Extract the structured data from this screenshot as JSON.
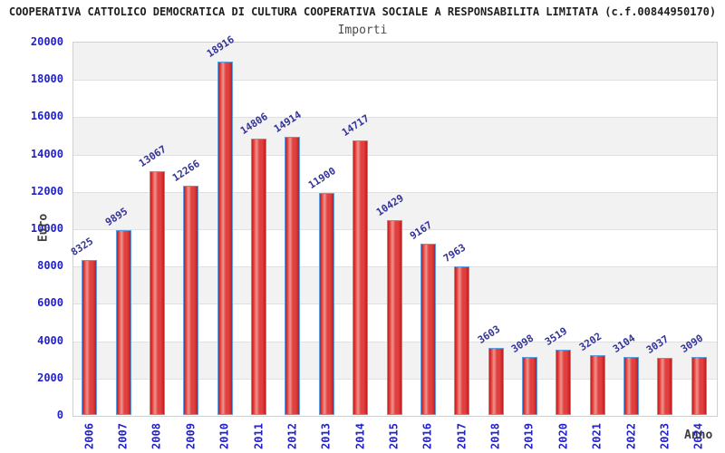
{
  "title": "COOPERATIVA CATTOLICO DEMOCRATICA DI CULTURA COOPERATIVA SOCIALE A RESPONSABILITA LIMITATA (c.f.00844950170)",
  "subtitle": "Importi",
  "chart_data": {
    "type": "bar",
    "title": "Importi",
    "xlabel": "Anno",
    "ylabel": "Euro",
    "categories": [
      "2006",
      "2007",
      "2008",
      "2009",
      "2010",
      "2011",
      "2012",
      "2013",
      "2014",
      "2015",
      "2016",
      "2017",
      "2018",
      "2019",
      "2020",
      "2021",
      "2022",
      "2023",
      "2024"
    ],
    "values": [
      8325,
      9895,
      13067,
      12266,
      18916,
      14806,
      14914,
      11900,
      14717,
      10429,
      9167,
      7963,
      3603,
      3098,
      3519,
      3202,
      3104,
      3037,
      3090
    ],
    "ylim": [
      0,
      20000
    ],
    "yticks": [
      0,
      2000,
      4000,
      6000,
      8000,
      10000,
      12000,
      14000,
      16000,
      18000,
      20000
    ],
    "grid": "horizontal-bands-alternating",
    "legend": "none",
    "bar_labels_rotated": true,
    "x_labels_rotated": true
  },
  "colors": {
    "tick_label_blue": "#2222cc",
    "value_label_navy": "#333399",
    "band_gray": "#f2f2f2",
    "band_white": "#ffffff",
    "gridline": "#e0e0e0",
    "plot_border": "#d0d0d0",
    "bar_border_blue": "#5b9fe0",
    "bar_red_dark": "#bf1e1e",
    "bar_red_mid": "#e04040",
    "bar_red_light": "#f0948c",
    "title_color": "#1f1f1f",
    "subtitle_color": "#4a4a4a",
    "axis_name_color": "#3d3d3d"
  }
}
